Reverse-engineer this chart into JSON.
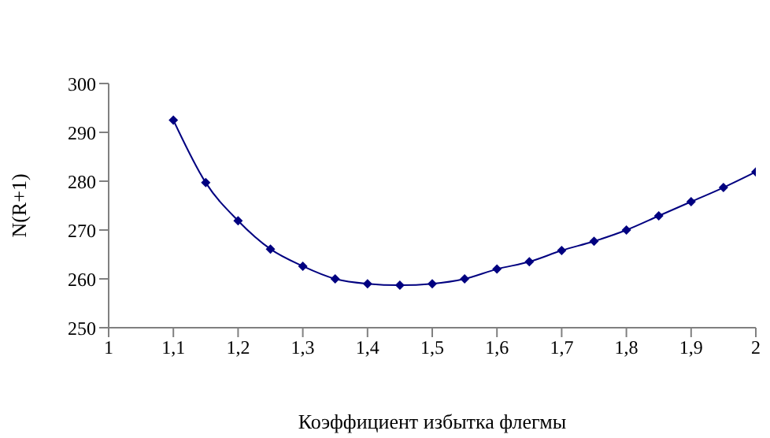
{
  "chart_data": {
    "type": "line",
    "xlabel": "Коэффициент избытка флегмы",
    "ylabel": "N(R+1)",
    "x": [
      1.1,
      1.15,
      1.2,
      1.25,
      1.3,
      1.35,
      1.4,
      1.45,
      1.5,
      1.55,
      1.6,
      1.65,
      1.7,
      1.75,
      1.8,
      1.85,
      1.9,
      1.95,
      2.0
    ],
    "series": [
      {
        "color": "#000080",
        "values": [
          292.5,
          279.7,
          271.9,
          266.1,
          262.6,
          260,
          259,
          258.7,
          259,
          260,
          262,
          263.5,
          265.8,
          267.7,
          270,
          272.9,
          275.8,
          278.7,
          281.9
        ]
      }
    ],
    "xlim": [
      1,
      2
    ],
    "xticks": [
      1,
      {
        "value": 1.1,
        "label": "1,1"
      },
      {
        "value": 1.2,
        "label": "1,2"
      },
      {
        "value": 1.3,
        "label": "1,3"
      },
      {
        "value": 1.4,
        "label": "1,4"
      },
      {
        "value": 1.5,
        "label": "1,5"
      },
      {
        "value": 1.6,
        "label": "1,6"
      },
      {
        "value": 1.7,
        "label": "1,7"
      },
      {
        "value": 1.8,
        "label": "1,8"
      },
      {
        "value": 1.9,
        "label": "1,9"
      },
      2
    ],
    "ylim": [
      250,
      300
    ],
    "yticks": [
      250,
      260,
      270,
      280,
      290,
      300
    ],
    "grid": false,
    "legend": false,
    "marker": "diamond",
    "line_style": "solid"
  }
}
